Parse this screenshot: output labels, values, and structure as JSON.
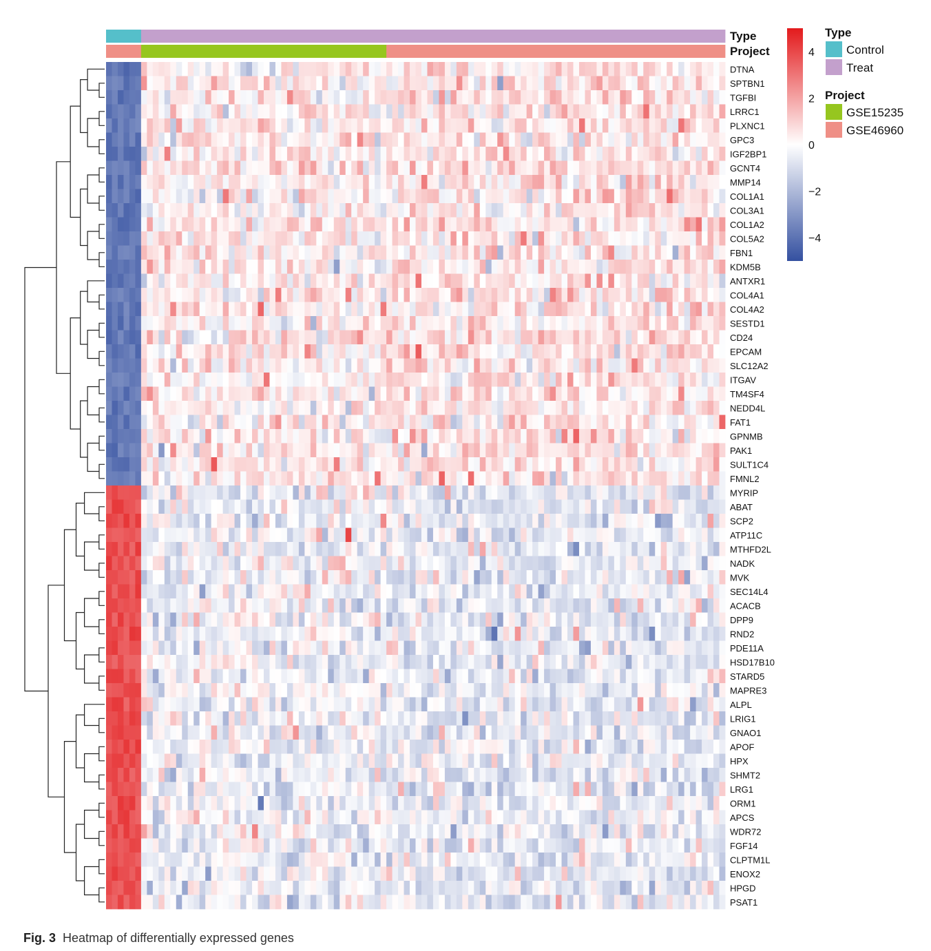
{
  "chart_data": {
    "type": "heatmap",
    "title": "",
    "genes": [
      "DTNA",
      "SPTBN1",
      "TGFBI",
      "LRRC1",
      "PLXNC1",
      "GPC3",
      "IGF2BP1",
      "GCNT4",
      "MMP14",
      "COL1A1",
      "COL3A1",
      "COL1A2",
      "COL5A2",
      "FBN1",
      "KDM5B",
      "ANTXR1",
      "COL4A1",
      "COL4A2",
      "SESTD1",
      "CD24",
      "EPCAM",
      "SLC12A2",
      "ITGAV",
      "TM4SF4",
      "NEDD4L",
      "FAT1",
      "GPNMB",
      "PAK1",
      "SULT1C4",
      "FMNL2",
      "MYRIP",
      "ABAT",
      "SCP2",
      "ATP11C",
      "MTHFD2L",
      "NADK",
      "MVK",
      "SEC14L4",
      "ACACB",
      "DPP9",
      "RND2",
      "PDE11A",
      "HSD17B10",
      "STARD5",
      "MAPRE3",
      "ALPL",
      "LRIG1",
      "GNAO1",
      "APOF",
      "HPX",
      "SHMT2",
      "LRG1",
      "ORM1",
      "APCS",
      "WDR72",
      "FGF14",
      "CLPTM1L",
      "ENOX2",
      "HPGD",
      "PSAT1"
    ],
    "upregulated_in_control_genes": 30,
    "annotation_tracks": [
      {
        "name": "Type",
        "segments": [
          {
            "label": "Control",
            "samples": 6
          },
          {
            "label": "Treat",
            "samples": 100
          }
        ]
      },
      {
        "name": "Project",
        "segments": [
          {
            "label": "GSE46960",
            "samples": 6
          },
          {
            "label": "GSE15235",
            "samples": 42
          },
          {
            "label": "GSE46960",
            "samples": 58
          }
        ]
      }
    ],
    "color_scale": {
      "min": -5,
      "max": 5,
      "low": "#3450a0",
      "mid": "#ffffff",
      "high": "#e31a1c"
    },
    "colorbar_ticks": [
      "4",
      "2",
      "0",
      "−2",
      "−4"
    ],
    "colorbar_tick_values": [
      4,
      2,
      0,
      -2,
      -4
    ],
    "legend": {
      "type_title": "Type",
      "type_items": [
        {
          "label": "Control",
          "color": "#55bfca"
        },
        {
          "label": "Treat",
          "color": "#c3a0cc"
        }
      ],
      "project_title": "Project",
      "project_items": [
        {
          "label": "GSE15235",
          "color": "#96c61f"
        },
        {
          "label": "GSE46960",
          "color": "#ef8f86"
        }
      ]
    }
  },
  "annotation_labels": {
    "type": "Type",
    "project": "Project"
  },
  "caption": {
    "label": "Fig. 3",
    "text": "Heatmap of differentially expressed genes"
  }
}
